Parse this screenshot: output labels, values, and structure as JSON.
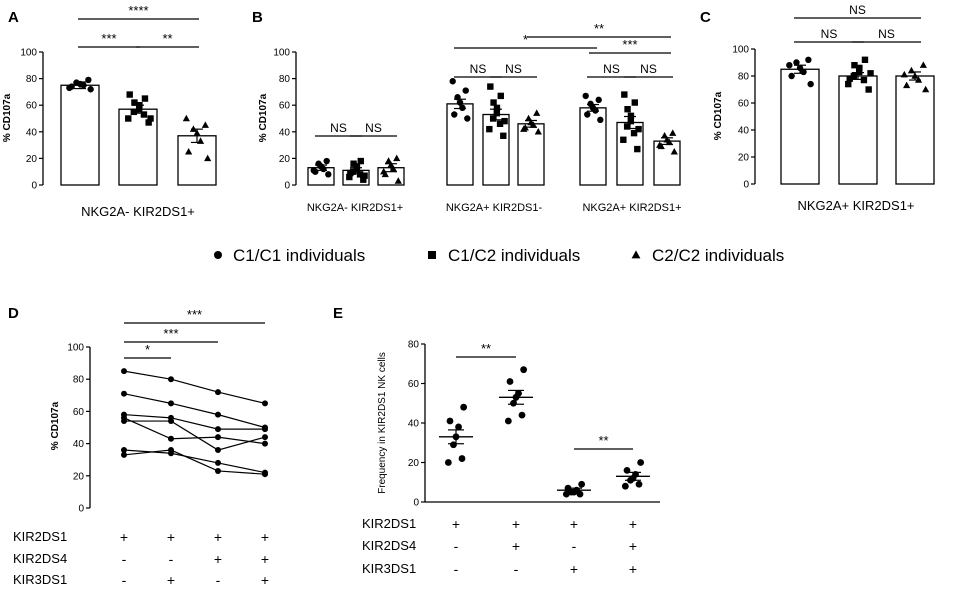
{
  "legend": [
    {
      "marker": "circle",
      "label": "C1/C1 individuals"
    },
    {
      "marker": "square",
      "label": "C1/C2 individuals"
    },
    {
      "marker": "triangle",
      "label": "C2/C2 individuals"
    }
  ],
  "chart_data": [
    {
      "panel": "A",
      "type": "bar",
      "ylabel": "% CD107a",
      "ylim": [
        0,
        100
      ],
      "yticks": [
        0,
        20,
        40,
        60,
        80,
        100
      ],
      "xlabel": "NKG2A- KIR2DS1+",
      "series": [
        {
          "name": "C1/C1 individuals",
          "marker": "circle",
          "mean": 75,
          "sem": 2.5,
          "points": [
            72,
            74,
            75,
            76,
            77,
            79,
            73
          ]
        },
        {
          "name": "C1/C2 individuals",
          "marker": "square",
          "mean": 57,
          "sem": 3,
          "points": [
            47,
            50,
            53,
            55,
            57,
            60,
            62,
            65,
            68,
            50
          ]
        },
        {
          "name": "C2/C2 individuals",
          "marker": "triangle",
          "mean": 37,
          "sem": 5,
          "points": [
            20,
            25,
            33,
            39,
            42,
            45,
            50
          ]
        }
      ],
      "significance": [
        {
          "from": 0,
          "to": 1,
          "label": "***",
          "level": 1
        },
        {
          "from": 1,
          "to": 2,
          "label": "**",
          "level": 1
        },
        {
          "from": 0,
          "to": 2,
          "label": "****",
          "level": 2
        }
      ]
    },
    {
      "panel": "B",
      "type": "bar",
      "ylabel": "% CD107a",
      "ylim": [
        0,
        100
      ],
      "yticks": [
        0,
        20,
        40,
        60,
        80,
        100
      ],
      "groups": [
        {
          "label": "NKG2A- KIR2DS1+",
          "series": [
            {
              "name": "C1/C1 individuals",
              "marker": "circle",
              "mean": 13,
              "sem": 2,
              "points": [
                8,
                10,
                12,
                14,
                16,
                18,
                11
              ]
            },
            {
              "name": "C1/C2 individuals",
              "marker": "square",
              "mean": 11,
              "sem": 2,
              "points": [
                4,
                6,
                8,
                10,
                12,
                14,
                16,
                18,
                9,
                7
              ]
            },
            {
              "name": "C2/C2 individuals",
              "marker": "triangle",
              "mean": 13,
              "sem": 3,
              "points": [
                3,
                8,
                12,
                15,
                18,
                20,
                10
              ]
            }
          ],
          "significance": [
            {
              "from": 0,
              "to": 1,
              "label": "NS",
              "level": 1
            },
            {
              "from": 1,
              "to": 2,
              "label": "NS",
              "level": 1
            }
          ]
        },
        {
          "label": "NKG2A+ KIR2DS1-",
          "series": [
            {
              "name": "C1/C1 individuals",
              "marker": "circle",
              "mean": 61,
              "sem": 3.5,
              "points": [
                50,
                53,
                58,
                62,
                66,
                71,
                78
              ]
            },
            {
              "name": "C1/C2 individuals",
              "marker": "square",
              "mean": 53,
              "sem": 4,
              "points": [
                37,
                42,
                46,
                50,
                54,
                58,
                62,
                67,
                74,
                48
              ]
            },
            {
              "name": "C2/C2 individuals",
              "marker": "triangle",
              "mean": 46,
              "sem": 2.5,
              "points": [
                40,
                43,
                45,
                47,
                50,
                54,
                42
              ]
            }
          ],
          "significance": [
            {
              "from": 0,
              "to": 1,
              "label": "NS",
              "level": 1
            },
            {
              "from": 1,
              "to": 2,
              "label": "NS",
              "level": 1
            }
          ]
        },
        {
          "label": "NKG2A+ KIR2DS1+",
          "series": [
            {
              "name": "C1/C1 individuals",
              "marker": "circle",
              "mean": 58,
              "sem": 2.5,
              "points": [
                49,
                53,
                56,
                58,
                61,
                64,
                67
              ]
            },
            {
              "name": "C1/C2 individuals",
              "marker": "square",
              "mean": 47,
              "sem": 4.5,
              "points": [
                27,
                34,
                39,
                44,
                48,
                52,
                57,
                62,
                68,
                42
              ]
            },
            {
              "name": "C2/C2 individuals",
              "marker": "triangle",
              "mean": 33,
              "sem": 2.5,
              "points": [
                25,
                29,
                32,
                34,
                37,
                39,
                30
              ]
            }
          ],
          "significance": [
            {
              "from": 0,
              "to": 1,
              "label": "NS",
              "level": 1
            },
            {
              "from": 1,
              "to": 2,
              "label": "NS",
              "level": 1
            },
            {
              "from": 0,
              "to": 2,
              "label": "***",
              "level": 2
            }
          ]
        }
      ],
      "cross_significance": [
        {
          "label": "*",
          "from_group": 1,
          "to_group": 2
        },
        {
          "label": "**",
          "from_group": 1,
          "to_group": 2
        }
      ]
    },
    {
      "panel": "C",
      "type": "bar",
      "ylabel": "% CD107a",
      "ylim": [
        0,
        100
      ],
      "yticks": [
        0,
        20,
        40,
        60,
        80,
        100
      ],
      "xlabel": "NKG2A+ KIR2DS1+",
      "series": [
        {
          "name": "C1/C1 individuals",
          "marker": "circle",
          "mean": 85,
          "sem": 3,
          "points": [
            74,
            80,
            83,
            86,
            90,
            92,
            88
          ]
        },
        {
          "name": "C1/C2 individuals",
          "marker": "square",
          "mean": 80,
          "sem": 2.5,
          "points": [
            70,
            74,
            77,
            80,
            83,
            86,
            88,
            92,
            78,
            82
          ]
        },
        {
          "name": "C2/C2 individuals",
          "marker": "triangle",
          "mean": 80,
          "sem": 3,
          "points": [
            70,
            73,
            77,
            80,
            84,
            88,
            81
          ]
        }
      ],
      "significance": [
        {
          "from": 0,
          "to": 1,
          "label": "NS",
          "level": 1
        },
        {
          "from": 1,
          "to": 2,
          "label": "NS",
          "level": 1
        },
        {
          "from": 0,
          "to": 2,
          "label": "NS",
          "level": 2
        }
      ]
    },
    {
      "panel": "D",
      "type": "line",
      "ylabel": "% CD107a",
      "ylim": [
        0,
        100
      ],
      "yticks": [
        0,
        20,
        40,
        60,
        80,
        100
      ],
      "conditions": [
        {
          "KIR2DS1": "+",
          "KIR2DS4": "-",
          "KIR3DS1": "-"
        },
        {
          "KIR2DS1": "+",
          "KIR2DS4": "-",
          "KIR3DS1": "+"
        },
        {
          "KIR2DS1": "+",
          "KIR2DS4": "+",
          "KIR3DS1": "-"
        },
        {
          "KIR2DS1": "+",
          "KIR2DS4": "+",
          "KIR3DS1": "+"
        }
      ],
      "row_labels": [
        "KIR2DS1",
        "KIR2DS4",
        "KIR3DS1"
      ],
      "series": [
        {
          "values": [
            85,
            80,
            72,
            65
          ]
        },
        {
          "values": [
            71,
            65,
            58,
            50
          ]
        },
        {
          "values": [
            58,
            56,
            49,
            49
          ]
        },
        {
          "values": [
            56,
            43,
            44,
            40
          ]
        },
        {
          "values": [
            54,
            54,
            36,
            44
          ]
        },
        {
          "values": [
            36,
            34,
            28,
            22
          ]
        },
        {
          "values": [
            33,
            36,
            23,
            21
          ]
        }
      ],
      "significance": [
        {
          "from": 0,
          "to": 1,
          "label": "*",
          "level": 1
        },
        {
          "from": 0,
          "to": 2,
          "label": "***",
          "level": 2
        },
        {
          "from": 0,
          "to": 3,
          "label": "***",
          "level": 3
        }
      ]
    },
    {
      "panel": "E",
      "type": "scatter",
      "ylabel": "Frequency in KIR2DS1 NK cells",
      "ylim": [
        0,
        80
      ],
      "yticks": [
        0,
        20,
        40,
        60,
        80
      ],
      "conditions": [
        {
          "KIR2DS1": "+",
          "KIR2DS4": "-",
          "KIR3DS1": "-"
        },
        {
          "KIR2DS1": "+",
          "KIR2DS4": "+",
          "KIR3DS1": "-"
        },
        {
          "KIR2DS1": "+",
          "KIR2DS4": "-",
          "KIR3DS1": "+"
        },
        {
          "KIR2DS1": "+",
          "KIR2DS4": "+",
          "KIR3DS1": "+"
        }
      ],
      "row_labels": [
        "KIR2DS1",
        "KIR2DS4",
        "KIR3DS1"
      ],
      "groups": [
        {
          "mean": 33,
          "sem": 3.5,
          "points": [
            48,
            41,
            38,
            33,
            29,
            22,
            20
          ]
        },
        {
          "mean": 53,
          "sem": 3.5,
          "points": [
            67,
            61,
            55,
            53,
            50,
            44,
            41
          ]
        },
        {
          "mean": 6,
          "sem": 1,
          "points": [
            9,
            7,
            6,
            5,
            5,
            4,
            4
          ]
        },
        {
          "mean": 13,
          "sem": 2,
          "points": [
            20,
            16,
            14,
            12,
            11,
            9,
            8
          ]
        }
      ],
      "significance": [
        {
          "from": 0,
          "to": 1,
          "label": "**",
          "level": 1
        },
        {
          "from": 2,
          "to": 3,
          "label": "**",
          "level": 1
        }
      ]
    }
  ]
}
